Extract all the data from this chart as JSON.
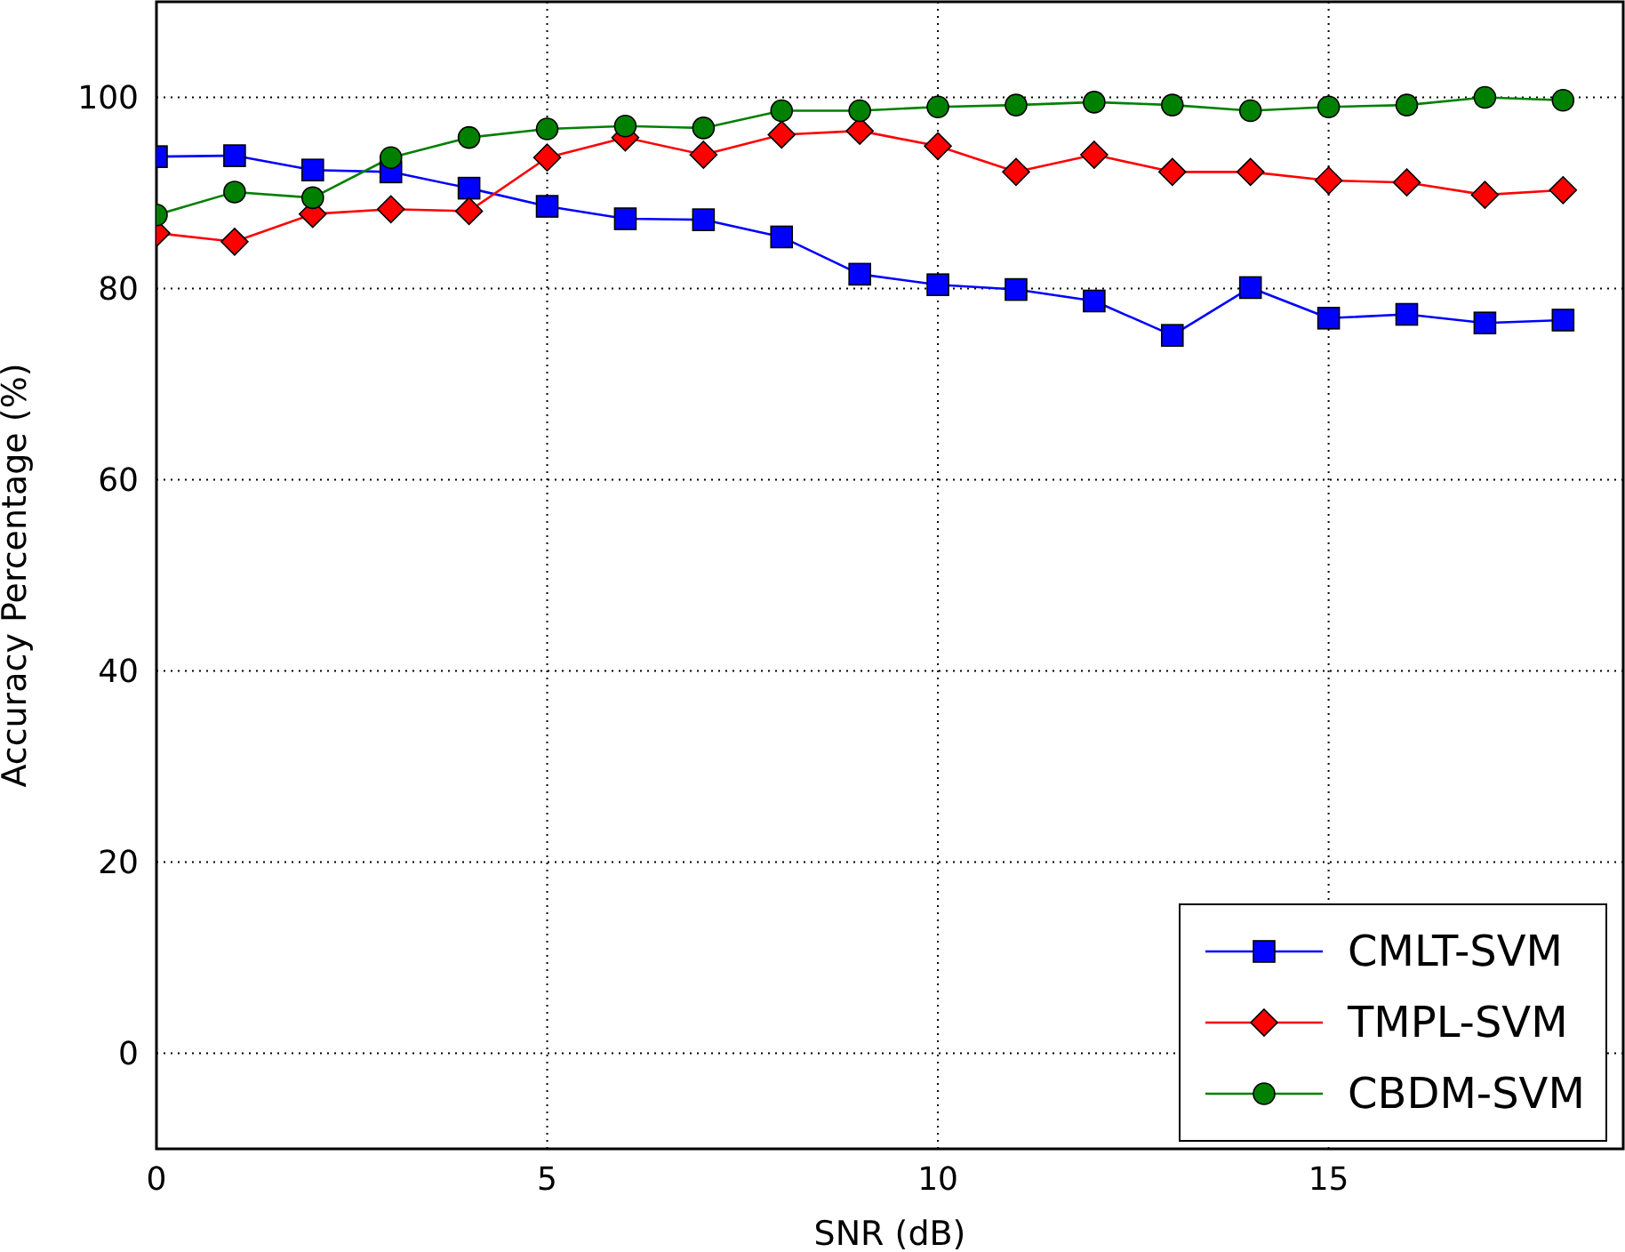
{
  "chart_data": {
    "type": "line",
    "xlabel": "SNR (dB)",
    "ylabel": "Accuracy Percentage (%)",
    "x": [
      0,
      1,
      2,
      3,
      4,
      5,
      6,
      7,
      8,
      9,
      10,
      11,
      12,
      13,
      14,
      15,
      16,
      17,
      18
    ],
    "series": [
      {
        "name": "CMLT-SVM",
        "color": "#0000ff",
        "marker": "square",
        "values": [
          93.8,
          93.9,
          92.4,
          92.2,
          90.5,
          88.6,
          87.3,
          87.2,
          85.4,
          81.5,
          80.4,
          79.9,
          78.7,
          75.1,
          80.1,
          76.9,
          77.3,
          76.4,
          76.7
        ]
      },
      {
        "name": "TMPL-SVM",
        "color": "#ff0000",
        "marker": "diamond",
        "values": [
          85.8,
          84.9,
          87.8,
          88.3,
          88.1,
          93.7,
          95.8,
          94.0,
          96.1,
          96.5,
          94.9,
          92.2,
          94.0,
          92.2,
          92.2,
          91.3,
          91.1,
          89.8,
          90.3
        ]
      },
      {
        "name": "CBDM-SVM",
        "color": "#008000",
        "marker": "circle",
        "values": [
          87.7,
          90.1,
          89.5,
          93.7,
          95.8,
          96.7,
          97.0,
          96.8,
          98.6,
          98.6,
          99.0,
          99.2,
          99.5,
          99.2,
          98.6,
          99.0,
          99.2,
          100.0,
          99.7
        ]
      }
    ],
    "xlim": [
      0,
      18.77
    ],
    "xticks": [
      0,
      5,
      10,
      15
    ],
    "ylim": [
      -10,
      110
    ],
    "yticks": [
      0,
      20,
      40,
      60,
      80,
      100
    ],
    "grid": true,
    "legend": "bottom right",
    "line_style": "solid"
  }
}
